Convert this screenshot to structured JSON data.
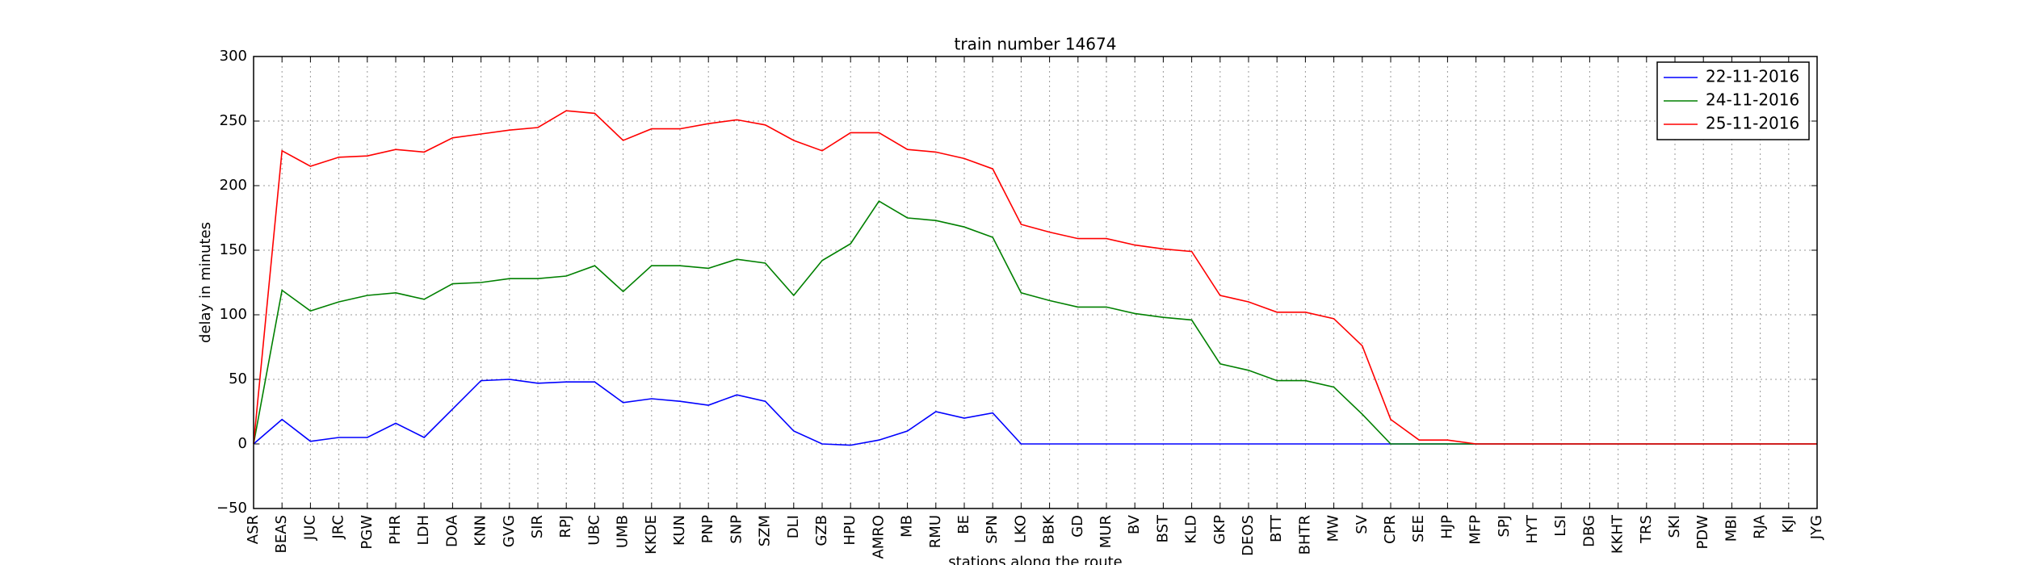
{
  "chart_data": {
    "type": "line",
    "title": "train number 14674",
    "x_label": "stations along the route",
    "y_label": "delay in minutes",
    "categories": [
      "ASR",
      "BEAS",
      "JUC",
      "JRC",
      "PGW",
      "PHR",
      "LDH",
      "DOA",
      "KNN",
      "GVG",
      "SIR",
      "RPJ",
      "UBC",
      "UMB",
      "KKDE",
      "KUN",
      "PNP",
      "SNP",
      "SZM",
      "DLI",
      "GZB",
      "HPU",
      "AMRO",
      "MB",
      "RMU",
      "BE",
      "SPN",
      "LKO",
      "BBK",
      "GD",
      "MUR",
      "BV",
      "BST",
      "KLD",
      "GKP",
      "DEOS",
      "BTT",
      "BHTR",
      "MW",
      "SV",
      "CPR",
      "SEE",
      "HJP",
      "MFP",
      "SPJ",
      "HYT",
      "LSI",
      "DBG",
      "KKHT",
      "TRS",
      "SKI",
      "PDW",
      "MBI",
      "RJA",
      "KJI",
      "JYG"
    ],
    "series": [
      {
        "name": "22-11-2016",
        "color": "#0000ff",
        "values": [
          0,
          19,
          2,
          5,
          5,
          16,
          5,
          27,
          49,
          50,
          47,
          48,
          48,
          32,
          35,
          33,
          30,
          38,
          33,
          10,
          0,
          -1,
          3,
          10,
          25,
          20,
          24,
          0,
          0,
          0,
          0,
          0,
          0,
          0,
          0,
          0,
          0,
          0,
          0,
          0,
          0,
          0,
          0,
          0,
          0,
          0,
          0,
          0,
          0,
          0,
          0,
          0,
          0,
          0,
          0,
          0
        ]
      },
      {
        "name": "24-11-2016",
        "color": "#008000",
        "values": [
          0,
          119,
          103,
          110,
          115,
          117,
          112,
          124,
          125,
          128,
          128,
          130,
          138,
          118,
          138,
          138,
          136,
          143,
          140,
          115,
          142,
          155,
          188,
          175,
          173,
          168,
          160,
          117,
          111,
          106,
          106,
          101,
          98,
          96,
          62,
          57,
          49,
          49,
          44,
          23,
          0,
          0,
          0,
          0,
          0,
          0,
          0,
          0,
          0,
          0,
          0,
          0,
          0,
          0,
          0,
          0
        ]
      },
      {
        "name": "25-11-2016",
        "color": "#ff0000",
        "values": [
          0,
          227,
          215,
          222,
          223,
          228,
          226,
          237,
          240,
          243,
          245,
          258,
          256,
          235,
          244,
          244,
          248,
          251,
          247,
          235,
          227,
          241,
          241,
          228,
          226,
          221,
          213,
          170,
          164,
          159,
          159,
          154,
          151,
          149,
          115,
          110,
          102,
          102,
          97,
          76,
          19,
          3,
          3,
          0,
          0,
          0,
          0,
          0,
          0,
          0,
          0,
          0,
          0,
          0,
          0,
          0
        ]
      }
    ],
    "ylim": [
      -50,
      300
    ],
    "yticks": [
      {
        "value": -50,
        "label": "−50"
      },
      0,
      50,
      100,
      150,
      200,
      250,
      300
    ],
    "grid": true,
    "legend": "upper right"
  }
}
